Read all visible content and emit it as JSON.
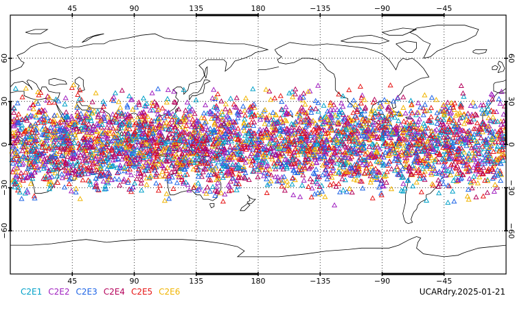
{
  "caption": "UCARdry.2025-01-21",
  "colors": {
    "land": "#000000",
    "frame": "#000000",
    "grid": "#000000",
    "background": "#ffffff"
  },
  "legend": [
    {
      "label": "C2E1",
      "color": "#00a0c8"
    },
    {
      "label": "C2E2",
      "color": "#a020c0"
    },
    {
      "label": "C2E3",
      "color": "#1e64e6"
    },
    {
      "label": "C2E4",
      "color": "#b4005a"
    },
    {
      "label": "C2E5",
      "color": "#e61414"
    },
    {
      "label": "C2E6",
      "color": "#f0b400"
    }
  ],
  "map": {
    "projection": "cylindrical-equidistant",
    "central_longitude": 180,
    "lon_range": [
      0,
      360
    ],
    "lat_range": [
      -90,
      90
    ],
    "grid": true,
    "lon_ticks": [
      {
        "value": 45,
        "label": "45"
      },
      {
        "value": 90,
        "label": "90"
      },
      {
        "value": 135,
        "label": "135"
      },
      {
        "value": 180,
        "label": "180"
      },
      {
        "value": 225,
        "label": "−135"
      },
      {
        "value": 270,
        "label": "−90"
      },
      {
        "value": 315,
        "label": "−45"
      }
    ],
    "lat_ticks": [
      {
        "value": 60,
        "label": "60"
      },
      {
        "value": 30,
        "label": "30"
      },
      {
        "value": 0,
        "label": "0"
      },
      {
        "value": -30,
        "label": "−30"
      },
      {
        "value": -60,
        "label": "−60"
      }
    ]
  },
  "chart_data": {
    "type": "scatter",
    "marker": "open-triangle",
    "description_of_distribution": "Radio-occultation profile locations, densely covering latitudes about 45S to 45N at all longitudes",
    "lat_extent": [
      -45,
      45
    ],
    "lon_extent": [
      0,
      360
    ],
    "series": [
      {
        "name": "C2E1",
        "color": "#00a0c8"
      },
      {
        "name": "C2E2",
        "color": "#a020c0"
      },
      {
        "name": "C2E3",
        "color": "#1e64e6"
      },
      {
        "name": "C2E4",
        "color": "#b4005a"
      },
      {
        "name": "C2E5",
        "color": "#e61414"
      },
      {
        "name": "C2E6",
        "color": "#f0b400"
      }
    ]
  }
}
